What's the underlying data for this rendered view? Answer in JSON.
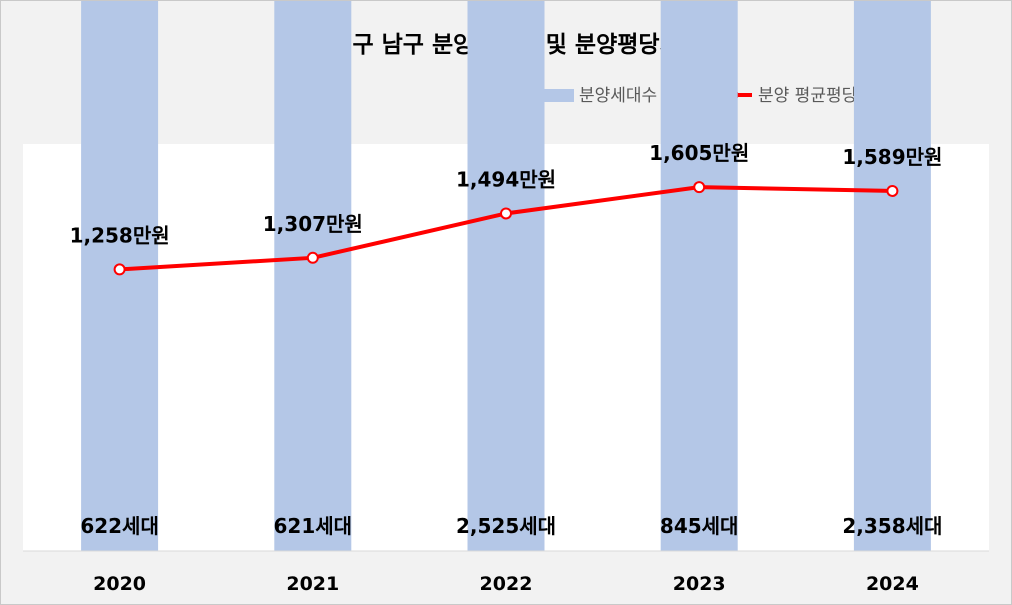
{
  "chart_data": {
    "type": "bar",
    "title": "[ 대구 남구 분양세대수 및 분양평당가 ]",
    "categories": [
      "2020",
      "2021",
      "2022",
      "2023",
      "2024"
    ],
    "series": [
      {
        "name": "분양세대수",
        "type": "bar",
        "color": "#b4c7e7",
        "values": [
          622,
          621,
          2525,
          845,
          2358
        ],
        "labels": [
          "622세대",
          "621세대",
          "2,525세대",
          "845세대",
          "2,358세대"
        ]
      },
      {
        "name": "분양 평균평당가(만원)",
        "type": "line",
        "color": "#ff0000",
        "values": [
          1258,
          1307,
          1494,
          1605,
          1589
        ],
        "labels": [
          "1,258만원",
          "1,307만원",
          "1,494만원",
          "1,605만원",
          "1,589만원"
        ]
      }
    ],
    "legend_position": "top-right",
    "grid": false
  }
}
